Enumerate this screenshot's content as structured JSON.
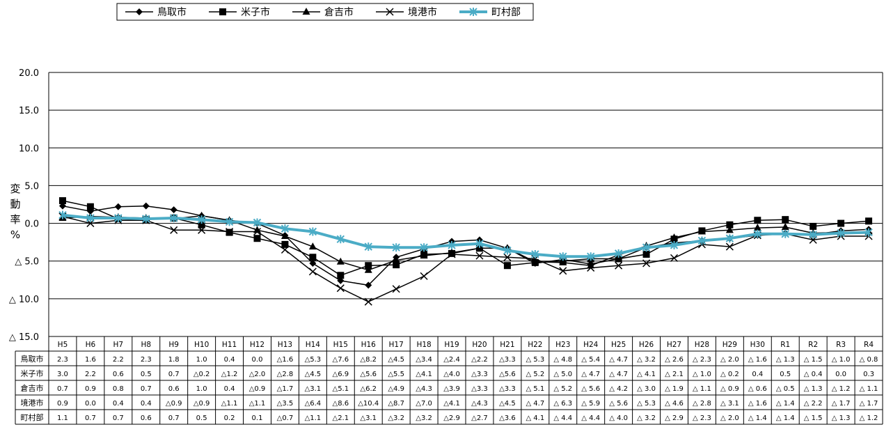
{
  "chart_data": {
    "type": "line",
    "title": "",
    "xlabel": "",
    "ylabel": "変動率%",
    "ylim": [
      -15,
      20
    ],
    "yticks": [
      20,
      15,
      10,
      5,
      0,
      -5,
      -10,
      -15
    ],
    "ytick_labels": [
      "20.0",
      "15.0",
      "10.0",
      "5.0",
      "0.0",
      "△ 5.0",
      "△ 10.0",
      "△ 15.0"
    ],
    "grid": true,
    "legend_position": "top",
    "categories": [
      "H5",
      "H6",
      "H7",
      "H8",
      "H9",
      "H10",
      "H11",
      "H12",
      "H13",
      "H14",
      "H15",
      "H16",
      "H17",
      "H18",
      "H19",
      "H20",
      "H21",
      "H22",
      "H23",
      "H24",
      "H25",
      "H26",
      "H27",
      "H28",
      "H29",
      "H30",
      "R1",
      "R2",
      "R3",
      "R4"
    ],
    "series": [
      {
        "name": "鳥取市",
        "marker": "diamond",
        "color": "#000000",
        "values": [
          2.3,
          1.6,
          2.2,
          2.3,
          1.8,
          1.0,
          0.4,
          0.0,
          -1.6,
          -5.3,
          -7.6,
          -8.2,
          -4.5,
          -3.4,
          -2.4,
          -2.2,
          -3.3,
          -5.3,
          -4.8,
          -5.4,
          -4.7,
          -3.2,
          -2.6,
          -2.3,
          -2.0,
          -1.6,
          -1.3,
          -1.5,
          -1.0,
          -0.8
        ],
        "labels": [
          "2.3",
          "1.6",
          "2.2",
          "2.3",
          "1.8",
          "1.0",
          "0.4",
          "0.0",
          "△1.6",
          "△5.3",
          "△7.6",
          "△8.2",
          "△4.5",
          "△3.4",
          "△2.4",
          "△2.2",
          "△3.3",
          "△ 5.3",
          "△ 4.8",
          "△ 5.4",
          "△ 4.7",
          "△ 3.2",
          "△ 2.6",
          "△ 2.3",
          "△ 2.0",
          "△ 1.6",
          "△ 1.3",
          "△ 1.5",
          "△ 1.0",
          "△ 0.8"
        ]
      },
      {
        "name": "米子市",
        "marker": "square",
        "color": "#000000",
        "values": [
          3.0,
          2.2,
          0.6,
          0.5,
          0.7,
          -0.2,
          -1.2,
          -2.0,
          -2.8,
          -4.5,
          -6.9,
          -5.6,
          -5.5,
          -4.1,
          -4.0,
          -3.3,
          -5.6,
          -5.2,
          -5.0,
          -4.7,
          -4.7,
          -4.1,
          -2.1,
          -1.0,
          -0.2,
          0.4,
          0.5,
          -0.4,
          0.0,
          0.3
        ],
        "labels": [
          "3.0",
          "2.2",
          "0.6",
          "0.5",
          "0.7",
          "△0.2",
          "△1.2",
          "△2.0",
          "△2.8",
          "△4.5",
          "△6.9",
          "△5.6",
          "△5.5",
          "△4.1",
          "△4.0",
          "△3.3",
          "△5.6",
          "△ 5.2",
          "△ 5.0",
          "△ 4.7",
          "△ 4.7",
          "△ 4.1",
          "△ 2.1",
          "△ 1.0",
          "△ 0.2",
          "0.4",
          "0.5",
          "△ 0.4",
          "0.0",
          "0.3"
        ]
      },
      {
        "name": "倉吉市",
        "marker": "triangle",
        "color": "#000000",
        "values": [
          0.7,
          0.9,
          0.8,
          0.7,
          0.6,
          1.0,
          0.4,
          -0.9,
          -1.7,
          -3.1,
          -5.1,
          -6.2,
          -4.9,
          -4.3,
          -3.9,
          -3.3,
          -3.3,
          -5.1,
          -5.2,
          -5.6,
          -4.2,
          -3.0,
          -1.9,
          -1.1,
          -0.9,
          -0.6,
          -0.5,
          -1.3,
          -1.2,
          -1.1
        ],
        "labels": [
          "0.7",
          "0.9",
          "0.8",
          "0.7",
          "0.6",
          "1.0",
          "0.4",
          "△0.9",
          "△1.7",
          "△3.1",
          "△5.1",
          "△6.2",
          "△4.9",
          "△4.3",
          "△3.9",
          "△3.3",
          "△3.3",
          "△ 5.1",
          "△ 5.2",
          "△ 5.6",
          "△ 4.2",
          "△ 3.0",
          "△ 1.9",
          "△ 1.1",
          "△ 0.9",
          "△ 0.6",
          "△ 0.5",
          "△ 1.3",
          "△ 1.2",
          "△ 1.1"
        ]
      },
      {
        "name": "境港市",
        "marker": "x",
        "color": "#000000",
        "values": [
          0.9,
          0.0,
          0.4,
          0.4,
          -0.9,
          -0.9,
          -1.1,
          -1.1,
          -3.5,
          -6.4,
          -8.6,
          -10.4,
          -8.7,
          -7.0,
          -4.1,
          -4.3,
          -4.5,
          -4.7,
          -6.3,
          -5.9,
          -5.6,
          -5.3,
          -4.6,
          -2.8,
          -3.1,
          -1.6,
          -1.4,
          -2.2,
          -1.7,
          -1.7
        ],
        "labels": [
          "0.9",
          "0.0",
          "0.4",
          "0.4",
          "△0.9",
          "△0.9",
          "△1.1",
          "△1.1",
          "△3.5",
          "△6.4",
          "△8.6",
          "△10.4",
          "△8.7",
          "△7.0",
          "△4.1",
          "△4.3",
          "△4.5",
          "△ 4.7",
          "△ 6.3",
          "△ 5.9",
          "△ 5.6",
          "△ 5.3",
          "△ 4.6",
          "△ 2.8",
          "△ 3.1",
          "△ 1.6",
          "△ 1.4",
          "△ 2.2",
          "△ 1.7",
          "△ 1.7"
        ]
      },
      {
        "name": "町村部",
        "marker": "asterisk",
        "color": "#4bacc6",
        "values": [
          1.1,
          0.7,
          0.7,
          0.6,
          0.7,
          0.5,
          0.2,
          0.1,
          -0.7,
          -1.1,
          -2.1,
          -3.1,
          -3.2,
          -3.2,
          -2.9,
          -2.7,
          -3.6,
          -4.1,
          -4.4,
          -4.4,
          -4.0,
          -3.2,
          -2.9,
          -2.3,
          -2.0,
          -1.4,
          -1.4,
          -1.5,
          -1.3,
          -1.2
        ],
        "labels": [
          "1.1",
          "0.7",
          "0.7",
          "0.6",
          "0.7",
          "0.5",
          "0.2",
          "0.1",
          "△0.7",
          "△1.1",
          "△2.1",
          "△3.1",
          "△3.2",
          "△3.2",
          "△2.9",
          "△2.7",
          "△3.6",
          "△ 4.1",
          "△ 4.4",
          "△ 4.4",
          "△ 4.0",
          "△ 3.2",
          "△ 2.9",
          "△ 2.3",
          "△ 2.0",
          "△ 1.4",
          "△ 1.4",
          "△ 1.5",
          "△ 1.3",
          "△ 1.2"
        ]
      }
    ]
  }
}
